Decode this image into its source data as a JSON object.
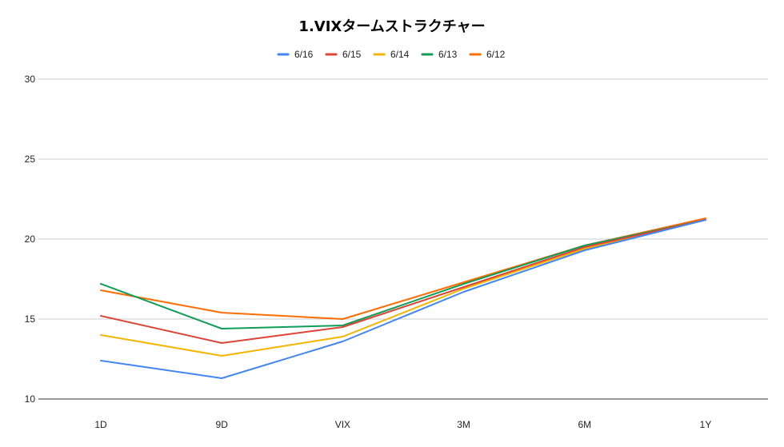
{
  "chart_data": {
    "type": "line",
    "title": "1.VIXタームストラクチャー",
    "xlabel": "",
    "ylabel": "",
    "categories": [
      "1D",
      "9D",
      "VIX",
      "3M",
      "6M",
      "1Y"
    ],
    "ylim": [
      10,
      30
    ],
    "yticks": [
      10,
      15,
      20,
      25,
      30
    ],
    "grid": true,
    "legend_position": "top",
    "series": [
      {
        "name": "6/16",
        "color": "#4285f4",
        "values": [
          12.4,
          11.3,
          13.6,
          16.7,
          19.3,
          21.2
        ]
      },
      {
        "name": "6/15",
        "color": "#db4437",
        "values": [
          15.2,
          13.5,
          14.5,
          17.0,
          19.5,
          21.2
        ]
      },
      {
        "name": "6/14",
        "color": "#f4b400",
        "values": [
          14.0,
          12.7,
          13.9,
          16.9,
          19.4,
          21.2
        ]
      },
      {
        "name": "6/13",
        "color": "#0f9d58",
        "values": [
          17.2,
          14.4,
          14.6,
          17.2,
          19.6,
          21.2
        ]
      },
      {
        "name": "6/12",
        "color": "#ff6d01",
        "values": [
          16.8,
          15.4,
          15.0,
          17.3,
          19.6,
          21.3
        ]
      }
    ]
  }
}
